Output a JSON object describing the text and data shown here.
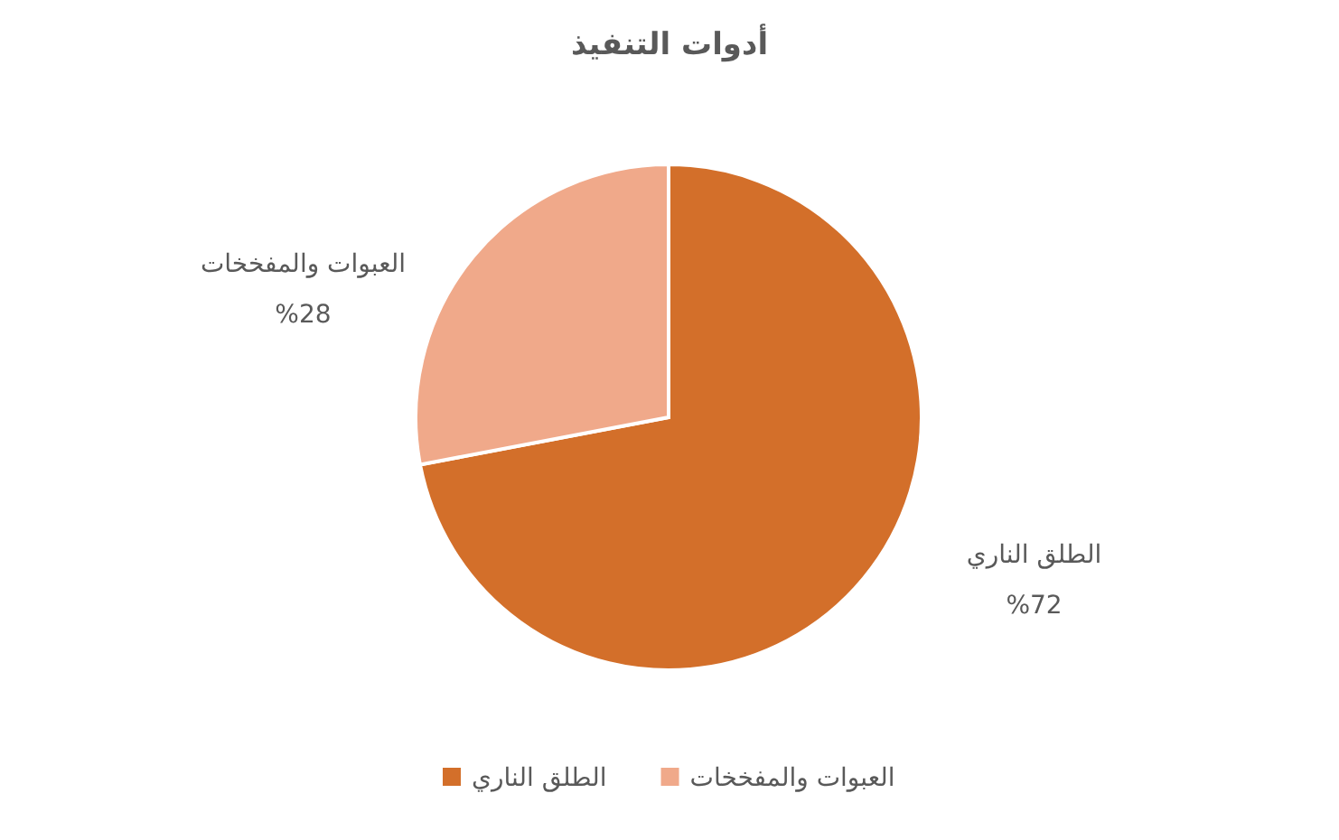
{
  "chart_data": {
    "type": "pie",
    "title": "أدوات التنفيذ",
    "categories": [
      "الطلق الناري",
      "العبوات والمفخخات"
    ],
    "values": [
      72,
      28
    ],
    "colors": [
      "#d36f2a",
      "#f0a98a"
    ],
    "value_labels": [
      "%72",
      "%28"
    ],
    "legend": "bottom"
  }
}
